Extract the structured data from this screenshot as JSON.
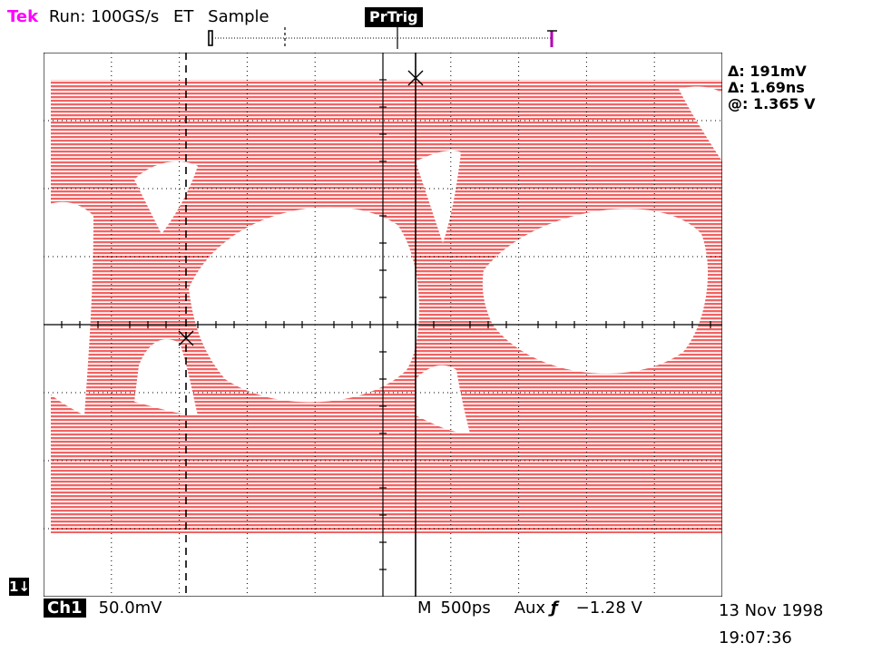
{
  "header": {
    "brand": "Tek",
    "run_status": "Run: 100GS/s",
    "acq_type": "ET",
    "acq_mode": "Sample",
    "trigger_badge": "PrTrig"
  },
  "readouts": {
    "delta_volts": "Δ: 191mV",
    "delta_time": "Δ: 1.69ns",
    "at_level": "@: 1.365 V"
  },
  "channel_marker": "1↓",
  "footer": {
    "channel": "Ch1",
    "channel_scale": "50.0mV",
    "time_mode": "M",
    "timebase": "500ps",
    "trigger_source": "Aux",
    "trigger_slope_symbol": "ƒ",
    "trigger_level": "−1.28 V"
  },
  "timestamp": {
    "date": "13 Nov 1998",
    "time": "19:07:36"
  },
  "colors": {
    "trace": "#f06464",
    "brand": "#ff00ff",
    "graticule": "#000000"
  }
}
